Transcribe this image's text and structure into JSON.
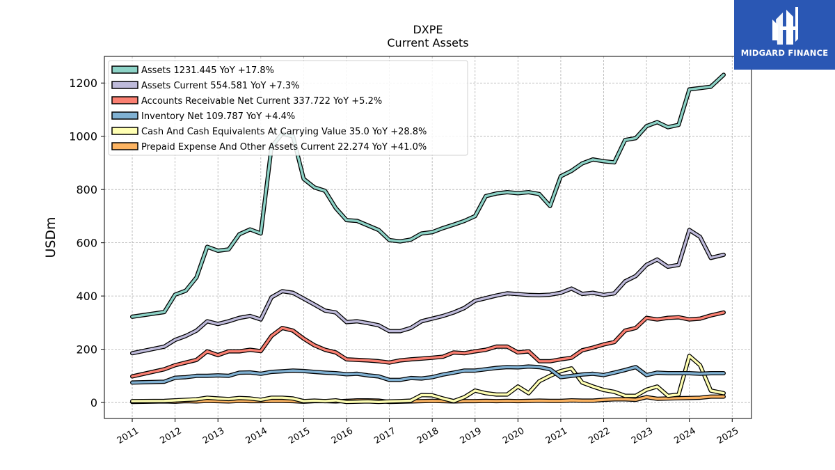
{
  "logo": {
    "name": "MIDGARD FINANCE"
  },
  "chart_data": {
    "type": "line",
    "title": "DXPE",
    "subtitle": "Current  Assets",
    "ylabel": "USDm",
    "xlabel": "",
    "ylim": [
      -60,
      1300
    ],
    "xlim": [
      2010.35,
      2025.45
    ],
    "yticks": [
      0,
      200,
      400,
      600,
      800,
      1000,
      1200
    ],
    "xticks": [
      "2011",
      "2012",
      "2013",
      "2014",
      "2015",
      "2016",
      "2017",
      "2018",
      "2019",
      "2020",
      "2021",
      "2022",
      "2023",
      "2024",
      "2025"
    ],
    "grid": true,
    "legend_position": "top-left",
    "series": [
      {
        "name": "Assets",
        "legend": "Assets  1231.445 YoY +17.8%",
        "color": "#8dd3c7",
        "x": [
          2011.0,
          2011.75,
          2012.0,
          2012.25,
          2012.5,
          2012.75,
          2013.0,
          2013.25,
          2013.5,
          2013.75,
          2014.0,
          2014.25,
          2014.5,
          2014.75,
          2015.0,
          2015.25,
          2015.5,
          2015.75,
          2016.0,
          2016.25,
          2016.5,
          2016.75,
          2017.0,
          2017.25,
          2017.5,
          2017.75,
          2018.0,
          2018.25,
          2018.5,
          2018.75,
          2019.0,
          2019.25,
          2019.5,
          2019.75,
          2020.0,
          2020.25,
          2020.5,
          2020.75,
          2021.0,
          2021.25,
          2021.5,
          2021.75,
          2022.0,
          2022.25,
          2022.5,
          2022.75,
          2023.0,
          2023.25,
          2023.5,
          2023.75,
          2024.0,
          2024.5,
          2024.8
        ],
        "y": [
          322,
          340,
          405,
          420,
          470,
          585,
          570,
          575,
          632,
          650,
          635,
          960,
          1010,
          1000,
          840,
          808,
          795,
          730,
          685,
          682,
          665,
          648,
          610,
          605,
          612,
          635,
          640,
          655,
          668,
          682,
          700,
          775,
          785,
          790,
          786,
          790,
          783,
          738,
          850,
          870,
          898,
          913,
          906,
          902,
          986,
          993,
          1038,
          1053,
          1034,
          1043,
          1176,
          1186,
          1231
        ]
      },
      {
        "name": "Assets Current",
        "legend": "Assets Current  554.581 YoY +7.3%",
        "color": "#bebada",
        "x": [
          2011.0,
          2011.75,
          2012.0,
          2012.25,
          2012.5,
          2012.75,
          2013.0,
          2013.25,
          2013.5,
          2013.75,
          2014.0,
          2014.25,
          2014.5,
          2014.75,
          2015.0,
          2015.25,
          2015.5,
          2015.75,
          2016.0,
          2016.25,
          2016.5,
          2016.75,
          2017.0,
          2017.25,
          2017.5,
          2017.75,
          2018.0,
          2018.25,
          2018.5,
          2018.75,
          2019.0,
          2019.25,
          2019.5,
          2019.75,
          2020.0,
          2020.25,
          2020.5,
          2020.75,
          2021.0,
          2021.25,
          2021.5,
          2021.75,
          2022.0,
          2022.25,
          2022.5,
          2022.75,
          2023.0,
          2023.25,
          2023.5,
          2023.75,
          2024.0,
          2024.25,
          2024.5,
          2024.8
        ],
        "y": [
          185,
          210,
          235,
          250,
          270,
          305,
          295,
          305,
          318,
          325,
          312,
          395,
          418,
          412,
          390,
          368,
          345,
          338,
          302,
          305,
          298,
          290,
          268,
          268,
          280,
          305,
          315,
          325,
          338,
          355,
          382,
          392,
          402,
          410,
          407,
          404,
          403,
          405,
          412,
          428,
          408,
          412,
          404,
          410,
          455,
          475,
          517,
          537,
          510,
          517,
          648,
          622,
          543,
          555
        ]
      },
      {
        "name": "Accounts Receivable Net Current",
        "legend": "Accounts Receivable Net Current  337.722 YoY +5.2%",
        "color": "#fb8072",
        "x": [
          2011.0,
          2011.75,
          2012.0,
          2012.25,
          2012.5,
          2012.75,
          2013.0,
          2013.25,
          2013.5,
          2013.75,
          2014.0,
          2014.25,
          2014.5,
          2014.75,
          2015.0,
          2015.25,
          2015.5,
          2015.75,
          2016.0,
          2016.25,
          2016.5,
          2016.75,
          2017.0,
          2017.25,
          2017.5,
          2017.75,
          2018.0,
          2018.25,
          2018.5,
          2018.75,
          2019.0,
          2019.25,
          2019.5,
          2019.75,
          2020.0,
          2020.25,
          2020.5,
          2020.75,
          2021.0,
          2021.25,
          2021.5,
          2021.75,
          2022.0,
          2022.25,
          2022.5,
          2022.75,
          2023.0,
          2023.25,
          2023.5,
          2023.75,
          2024.0,
          2024.25,
          2024.5,
          2024.8
        ],
        "y": [
          98,
          125,
          140,
          150,
          160,
          192,
          178,
          192,
          192,
          198,
          193,
          250,
          280,
          270,
          240,
          215,
          198,
          188,
          162,
          160,
          158,
          155,
          150,
          158,
          162,
          165,
          168,
          172,
          188,
          185,
          192,
          198,
          210,
          210,
          188,
          192,
          155,
          155,
          162,
          168,
          196,
          206,
          218,
          227,
          270,
          280,
          318,
          312,
          318,
          320,
          312,
          315,
          327,
          338
        ]
      },
      {
        "name": "Inventory Net",
        "legend": "Inventory Net  109.787 YoY +4.4%",
        "color": "#80b1d3",
        "x": [
          2011.0,
          2011.75,
          2012.0,
          2012.25,
          2012.5,
          2012.75,
          2013.0,
          2013.25,
          2013.5,
          2013.75,
          2014.0,
          2014.25,
          2014.5,
          2014.75,
          2015.0,
          2015.25,
          2015.5,
          2015.75,
          2016.0,
          2016.25,
          2016.5,
          2016.75,
          2017.0,
          2017.25,
          2017.5,
          2017.75,
          2018.0,
          2018.25,
          2018.5,
          2018.75,
          2019.0,
          2019.25,
          2019.5,
          2019.75,
          2020.0,
          2020.25,
          2020.5,
          2020.75,
          2021.0,
          2021.25,
          2021.5,
          2021.75,
          2022.0,
          2022.25,
          2022.5,
          2022.75,
          2023.0,
          2023.25,
          2023.5,
          2023.75,
          2024.0,
          2024.25,
          2024.5,
          2024.8
        ],
        "y": [
          75,
          78,
          93,
          95,
          100,
          100,
          102,
          100,
          112,
          113,
          108,
          115,
          117,
          120,
          118,
          115,
          112,
          110,
          106,
          108,
          102,
          98,
          85,
          85,
          92,
          90,
          95,
          105,
          112,
          120,
          120,
          125,
          130,
          133,
          132,
          135,
          133,
          125,
          95,
          100,
          105,
          108,
          103,
          112,
          122,
          133,
          103,
          112,
          110,
          110,
          110,
          108,
          110,
          110
        ]
      },
      {
        "name": "Cash And Cash Equivalents At Carrying Value",
        "legend": "Cash And Cash Equivalents At Carrying Value  35.0 YoY +28.8%",
        "color": "#ffffb3",
        "x": [
          2011.0,
          2011.75,
          2012.0,
          2012.25,
          2012.5,
          2012.75,
          2013.0,
          2013.25,
          2013.5,
          2013.75,
          2014.0,
          2014.25,
          2014.5,
          2014.75,
          2015.0,
          2015.25,
          2015.5,
          2015.75,
          2016.0,
          2016.25,
          2016.5,
          2016.75,
          2017.0,
          2017.25,
          2017.5,
          2017.75,
          2018.0,
          2018.25,
          2018.5,
          2018.75,
          2019.0,
          2019.25,
          2019.5,
          2019.75,
          2020.0,
          2020.25,
          2020.5,
          2020.75,
          2021.0,
          2021.25,
          2021.5,
          2021.75,
          2022.0,
          2022.25,
          2022.5,
          2022.75,
          2023.0,
          2023.25,
          2023.5,
          2023.75,
          2024.0,
          2024.25,
          2024.5,
          2024.8
        ],
        "y": [
          5,
          6,
          8,
          10,
          12,
          18,
          15,
          13,
          17,
          15,
          10,
          18,
          18,
          15,
          5,
          7,
          5,
          8,
          2,
          3,
          4,
          2,
          4,
          5,
          7,
          28,
          27,
          15,
          5,
          20,
          45,
          35,
          30,
          30,
          60,
          35,
          80,
          100,
          118,
          128,
          75,
          60,
          47,
          40,
          25,
          25,
          48,
          60,
          25,
          30,
          175,
          140,
          45,
          35
        ]
      },
      {
        "name": "Prepaid Expense And Other Assets Current",
        "legend": "Prepaid Expense And Other Assets Current  22.274 YoY +41.0%",
        "color": "#fdb462",
        "x": [
          2011.0,
          2011.75,
          2012.0,
          2012.25,
          2012.5,
          2012.75,
          2013.0,
          2013.25,
          2013.5,
          2013.75,
          2014.0,
          2014.25,
          2014.5,
          2014.75,
          2015.0,
          2015.25,
          2015.5,
          2015.75,
          2016.0,
          2016.25,
          2016.5,
          2016.75,
          2017.0,
          2017.25,
          2017.5,
          2017.75,
          2018.0,
          2018.25,
          2018.5,
          2018.75,
          2019.0,
          2019.25,
          2019.5,
          2019.75,
          2020.0,
          2020.25,
          2020.5,
          2020.75,
          2021.0,
          2021.25,
          2021.5,
          2021.75,
          2022.0,
          2022.25,
          2022.5,
          2022.75,
          2023.0,
          2023.25,
          2023.5,
          2023.75,
          2024.0,
          2024.25,
          2024.5,
          2024.8
        ],
        "y": [
          2,
          4,
          3,
          5,
          4,
          6,
          5,
          4,
          6,
          5,
          5,
          6,
          6,
          5,
          3,
          5,
          5,
          4,
          6,
          8,
          8,
          7,
          2,
          3,
          4,
          5,
          6,
          5,
          4,
          5,
          5,
          6,
          5,
          6,
          5,
          6,
          7,
          6,
          6,
          8,
          7,
          7,
          10,
          12,
          12,
          10,
          20,
          14,
          15,
          16,
          17,
          18,
          22,
          22
        ]
      }
    ]
  }
}
